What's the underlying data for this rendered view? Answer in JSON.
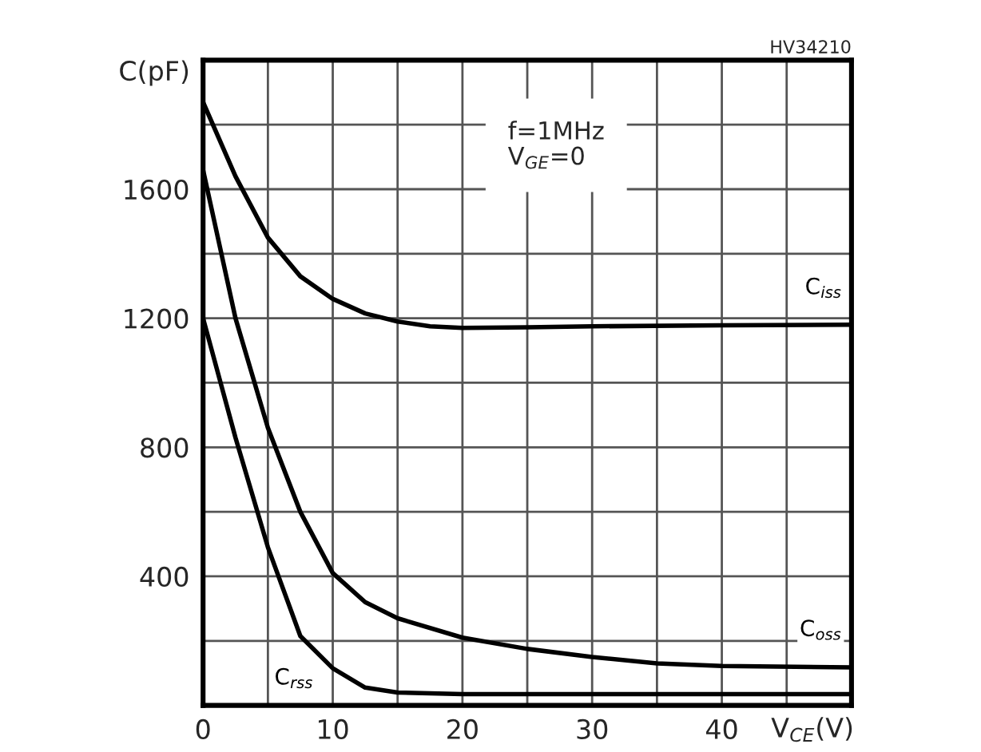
{
  "chart_data": {
    "type": "line",
    "xlabel": "V$_{CE}$(V)",
    "ylabel": "C(pF)",
    "annotations": [
      "HV34210",
      "f=1MHz",
      "V$_{GE}$=0"
    ],
    "series": [
      {
        "name": "C$_{iss}$",
        "color": "#000000",
        "x": [
          0,
          2.5,
          5,
          7.5,
          10,
          12.5,
          15,
          17.5,
          20,
          25,
          30,
          40,
          50
        ],
        "values": [
          1870,
          1640,
          1450,
          1330,
          1260,
          1215,
          1190,
          1175,
          1170,
          1172,
          1175,
          1178,
          1180
        ]
      },
      {
        "name": "C$_{oss}$",
        "color": "#000000",
        "x": [
          0,
          2.5,
          5,
          7.5,
          10,
          12.5,
          15,
          20,
          25,
          30,
          35,
          40,
          50
        ],
        "values": [
          1660,
          1200,
          860,
          600,
          410,
          320,
          270,
          210,
          175,
          150,
          130,
          122,
          118
        ]
      },
      {
        "name": "C$_{rss}$",
        "color": "#000000",
        "x": [
          0,
          2.5,
          5,
          7.5,
          10,
          12.5,
          15,
          20,
          30,
          40,
          50
        ],
        "values": [
          1200,
          830,
          490,
          215,
          115,
          55,
          40,
          35,
          35,
          35,
          35
        ]
      }
    ],
    "xlim": [
      0,
      50
    ],
    "ylim": [
      0,
      2000
    ],
    "xticks": [
      0,
      {
        "value": 5,
        "label": null
      },
      10,
      {
        "value": 15,
        "label": null
      },
      20,
      {
        "value": 25,
        "label": null
      },
      30,
      {
        "value": 35,
        "label": null
      },
      40,
      {
        "value": 45,
        "label": null
      },
      {
        "value": 50,
        "label": null
      }
    ],
    "yticks": [
      {
        "value": 0,
        "label": null
      },
      {
        "value": 200,
        "label": null
      },
      400,
      {
        "value": 600,
        "label": null
      },
      800,
      {
        "value": 1000,
        "label": null
      },
      1200,
      {
        "value": 1400,
        "label": null
      },
      1600,
      {
        "value": 1800,
        "label": null
      },
      {
        "value": 2000,
        "label": null
      }
    ],
    "grid": true,
    "legend": false,
    "marker": "none",
    "line_style": "solid"
  }
}
